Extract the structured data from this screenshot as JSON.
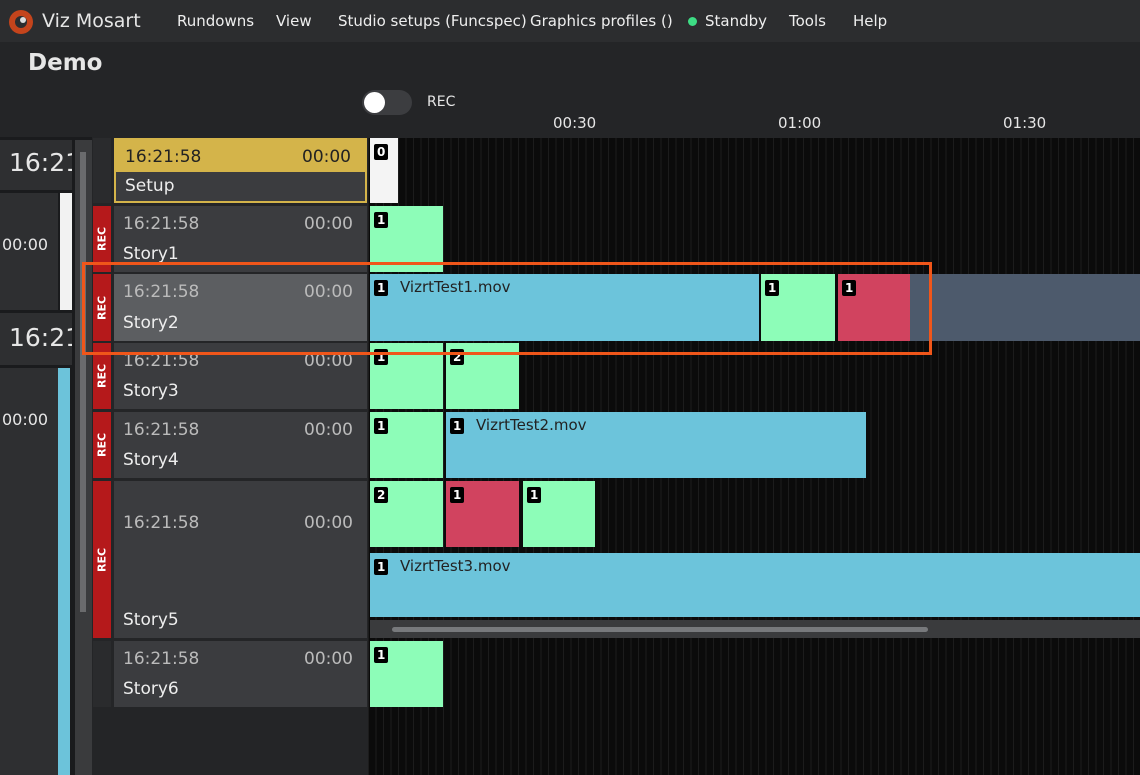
{
  "app_title": "Viz Mosart",
  "menu": [
    "Rundowns",
    "View",
    "Studio setups (Funcspec)",
    "Graphics profiles ()",
    "Standby",
    "Tools",
    "Help"
  ],
  "rundown": {
    "title": "Demo",
    "rec_toggle": "REC",
    "timeline_ticks": [
      "00:30",
      "01:00",
      "01:30"
    ]
  },
  "side_panel": {
    "clock_1": "16:21:",
    "timer_1": "00:00",
    "clock_2": "16:21:",
    "timer_2": "00:00"
  },
  "stories": [
    {
      "time": "16:21:58",
      "duration": "00:00",
      "name": "Setup",
      "items": [
        {
          "badge": "0"
        }
      ]
    },
    {
      "time": "16:21:58",
      "duration": "00:00",
      "name": "Story1",
      "rec": "REC",
      "items": [
        {
          "badge": "1"
        }
      ]
    },
    {
      "time": "16:21:58",
      "duration": "00:00",
      "name": "Story2",
      "rec": "REC",
      "items": [
        {
          "badge": "1",
          "label": "VizrtTest1.mov"
        },
        {
          "badge": "1"
        },
        {
          "badge": "1"
        }
      ]
    },
    {
      "time": "16:21:58",
      "duration": "00:00",
      "name": "Story3",
      "rec": "REC",
      "items": [
        {
          "badge": "1"
        },
        {
          "badge": "2"
        }
      ]
    },
    {
      "time": "16:21:58",
      "duration": "00:00",
      "name": "Story4",
      "rec": "REC",
      "items": [
        {
          "badge": "1"
        },
        {
          "badge": "1",
          "label": "VizrtTest2.mov"
        }
      ]
    },
    {
      "time": "16:21:58",
      "duration": "00:00",
      "name": "Story5",
      "rec": "REC",
      "items": [
        {
          "badge": "2"
        },
        {
          "badge": "1"
        },
        {
          "badge": "1"
        },
        {
          "badge": "1",
          "label": "VizrtTest3.mov"
        }
      ]
    },
    {
      "time": "16:21:58",
      "duration": "00:00",
      "name": "Story6",
      "items": [
        {
          "badge": "1"
        }
      ]
    }
  ]
}
